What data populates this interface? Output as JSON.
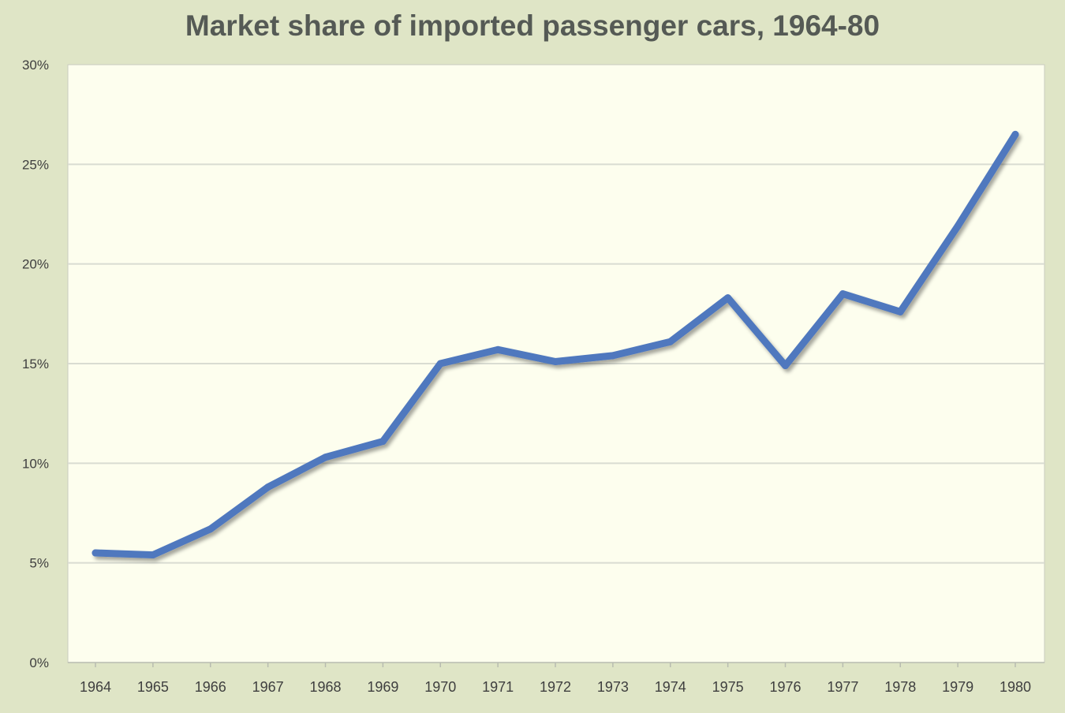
{
  "chart_data": {
    "type": "line",
    "title": "Market share of imported passenger cars, 1964-80",
    "xlabel": "",
    "ylabel": "",
    "x": [
      "1964",
      "1965",
      "1966",
      "1967",
      "1968",
      "1969",
      "1970",
      "1971",
      "1972",
      "1973",
      "1974",
      "1975",
      "1976",
      "1977",
      "1978",
      "1979",
      "1980"
    ],
    "series": [
      {
        "values": [
          5.5,
          5.4,
          6.7,
          8.8,
          10.3,
          11.1,
          15.0,
          15.7,
          15.1,
          15.4,
          16.1,
          18.3,
          14.9,
          18.5,
          17.6,
          21.9,
          26.5
        ]
      }
    ],
    "ylim": [
      0,
      30
    ],
    "yticks": [
      0,
      5,
      10,
      15,
      20,
      25,
      30
    ],
    "ytick_labels": [
      "0%",
      "5%",
      "10%",
      "15%",
      "20%",
      "25%",
      "30%"
    ],
    "grid": true,
    "legend": "none",
    "colors": {
      "line": "#5078be",
      "plot_background": "#fdfeee",
      "chart_background": "#dfe5c6"
    }
  }
}
